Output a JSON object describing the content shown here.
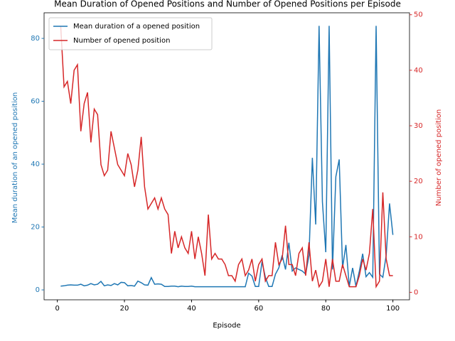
{
  "chart_data": {
    "type": "line",
    "title": "Mean Duration of Opened Positions and Number of Opened Positions per Episode",
    "xlabel": "Episode",
    "ylabel": "Mean duration of an opened position",
    "y2label": "Number of opened position",
    "x": [
      1,
      2,
      3,
      4,
      5,
      6,
      7,
      8,
      9,
      10,
      11,
      12,
      13,
      14,
      15,
      16,
      17,
      18,
      19,
      20,
      21,
      22,
      23,
      24,
      25,
      26,
      27,
      28,
      29,
      30,
      31,
      32,
      33,
      34,
      35,
      36,
      37,
      38,
      39,
      40,
      41,
      42,
      43,
      44,
      45,
      46,
      47,
      48,
      49,
      50,
      51,
      52,
      53,
      54,
      55,
      56,
      57,
      58,
      59,
      60,
      61,
      62,
      63,
      64,
      65,
      66,
      67,
      68,
      69,
      70,
      71,
      72,
      73,
      74,
      75,
      76,
      77,
      78,
      79,
      80,
      81,
      82,
      83,
      84,
      85,
      86,
      87,
      88,
      89,
      90,
      91,
      92,
      93,
      94,
      95,
      96,
      97,
      98,
      99,
      100
    ],
    "series": [
      {
        "name": "Mean duration of a opened position",
        "color": "#1f77b4",
        "axis": "y",
        "values": [
          1.2,
          1.3,
          1.5,
          1.6,
          1.5,
          1.5,
          1.8,
          1.3,
          1.5,
          2.0,
          1.6,
          1.8,
          2.7,
          1.3,
          1.6,
          1.4,
          2.0,
          1.6,
          2.4,
          2.3,
          1.3,
          1.4,
          1.2,
          2.8,
          2.3,
          1.6,
          1.5,
          3.9,
          1.8,
          1.9,
          1.8,
          1.1,
          1.1,
          1.2,
          1.2,
          1.0,
          1.2,
          1.1,
          1.1,
          1.2,
          1.0,
          1.0,
          1.0,
          1.0,
          1.0,
          1.0,
          1.0,
          1.0,
          1.0,
          1.0,
          1.0,
          1.0,
          1.0,
          1.0,
          1.0,
          1.0,
          5.3,
          4.4,
          1.1,
          1.1,
          9,
          4,
          1.1,
          1.1,
          5,
          7,
          11,
          6.5,
          15,
          6,
          7,
          6.5,
          6,
          5,
          11,
          42,
          20.8,
          84,
          28,
          12,
          84,
          6.5,
          36,
          41.5,
          7,
          14.3,
          1.1,
          7,
          1.1,
          6,
          11.5,
          4.2,
          5.5,
          4,
          84,
          5,
          4,
          11,
          27.5,
          17.5
        ]
      },
      {
        "name": "Number of opened position",
        "color": "#d62728",
        "axis": "y2",
        "values": [
          48,
          37,
          38,
          34,
          40,
          41,
          29,
          34,
          36,
          27,
          33,
          32,
          23,
          21,
          22,
          29,
          26,
          23,
          22,
          21,
          25,
          23,
          19,
          22,
          28,
          19,
          15,
          16,
          17,
          15,
          17,
          15,
          14,
          7,
          11,
          8,
          10,
          8,
          7,
          11,
          6,
          10,
          7,
          3,
          14,
          6,
          7,
          6,
          6,
          5,
          3,
          3,
          2,
          5,
          6,
          3,
          4,
          6,
          2,
          5,
          6,
          2,
          3,
          3,
          9,
          5,
          6,
          12,
          5,
          5,
          3,
          7,
          8,
          3,
          9,
          2,
          4,
          1,
          2,
          6,
          1,
          6,
          2,
          2,
          5,
          3,
          1,
          1,
          1,
          3,
          6,
          4,
          7,
          15,
          1,
          2,
          18,
          6,
          3,
          3
        ]
      }
    ],
    "xlim": [
      -3.95,
      104.95
    ],
    "xticks": [
      0,
      20,
      40,
      60,
      80,
      100
    ],
    "ylim": [
      -3.15,
      88.15
    ],
    "yticks": [
      0,
      20,
      40,
      60,
      80
    ],
    "y2lim": [
      -1.35,
      50.35
    ],
    "y2ticks": [
      0,
      10,
      20,
      30,
      40,
      50
    ],
    "legend": "upper left"
  }
}
